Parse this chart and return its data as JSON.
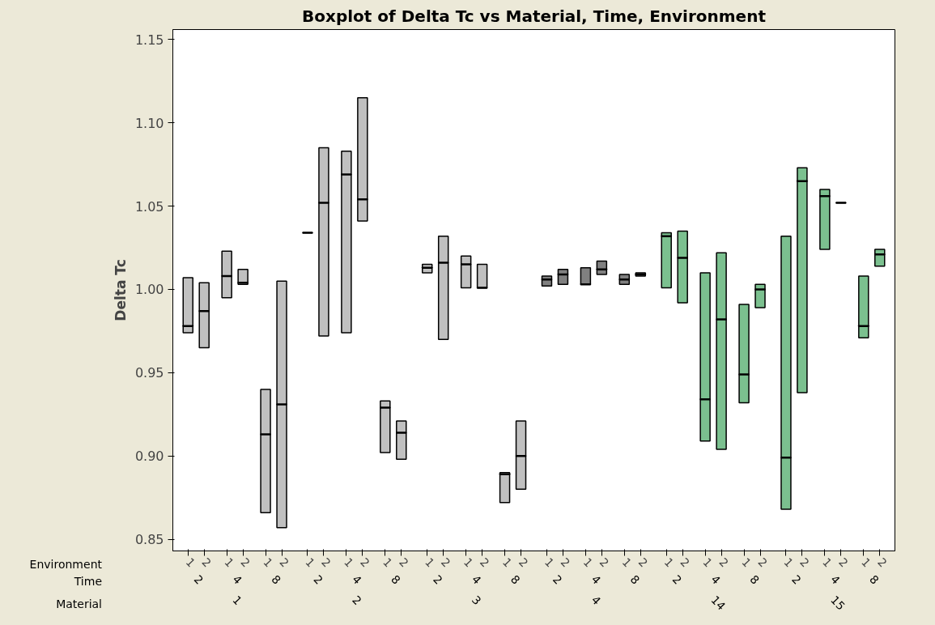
{
  "chart_data": {
    "type": "box",
    "title": "Boxplot of Delta Tc vs Material, Time, Environment",
    "ylabel": "Delta Tc",
    "annotations": [
      "Environment",
      "Time",
      "Material",
      "2",
      "4",
      "8",
      "2",
      "4",
      "8",
      "2",
      "4",
      "8",
      "2",
      "4",
      "8",
      "2",
      "4",
      "8",
      "2",
      "4",
      "8",
      "1",
      "2",
      "3",
      "4",
      "14",
      "15"
    ],
    "categories": [
      "1",
      "2",
      "1",
      "2",
      "1",
      "2",
      "1",
      "2",
      "1",
      "2",
      "1",
      "2",
      "1",
      "2",
      "1",
      "2",
      "1",
      "2",
      "1",
      "2",
      "1",
      "2",
      "1",
      "2",
      "1",
      "2",
      "1",
      "2",
      "1",
      "2",
      "1",
      "2",
      "1",
      "2",
      "1",
      "2"
    ],
    "ylim": [
      0.843,
      1.156
    ],
    "yticks": [
      {
        "value": 0.85,
        "label": "0.85"
      },
      {
        "value": 0.9,
        "label": "0.90"
      },
      {
        "value": 0.95,
        "label": "0.95"
      },
      {
        "value": 1.0,
        "label": "1.00"
      },
      {
        "value": 1.05,
        "label": "1.05"
      },
      {
        "value": 1.1,
        "label": "1.10"
      },
      {
        "value": 1.15,
        "label": "1.15"
      }
    ],
    "grid": false,
    "colors": [
      "#c0c0c0",
      "#c0c0c0",
      "#c0c0c0",
      "#c0c0c0",
      "#c0c0c0",
      "#c0c0c0",
      "#000000",
      "#c0c0c0",
      "#c0c0c0",
      "#c0c0c0",
      "#c0c0c0",
      "#c0c0c0",
      "#c0c0c0",
      "#c0c0c0",
      "#c0c0c0",
      "#c0c0c0",
      "#c0c0c0",
      "#c0c0c0",
      "#808080",
      "#808080",
      "#808080",
      "#808080",
      "#808080",
      "#808080",
      "#7bc08f",
      "#7bc08f",
      "#7bc08f",
      "#7bc08f",
      "#7bc08f",
      "#7bc08f",
      "#7bc08f",
      "#7bc08f",
      "#7bc08f",
      "#000000",
      "#7bc08f",
      "#7bc08f"
    ],
    "boxes": [
      {
        "low": 0.974,
        "q1": 0.974,
        "median": 0.978,
        "q3": 1.007,
        "high": 1.007
      },
      {
        "low": 0.965,
        "q1": 0.965,
        "median": 0.987,
        "q3": 1.004,
        "high": 1.004
      },
      {
        "low": 0.995,
        "q1": 0.995,
        "median": 1.008,
        "q3": 1.023,
        "high": 1.023
      },
      {
        "low": 1.003,
        "q1": 1.003,
        "median": 1.004,
        "q3": 1.012,
        "high": 1.012
      },
      {
        "low": 0.866,
        "q1": 0.866,
        "median": 0.913,
        "q3": 0.94,
        "high": 0.94
      },
      {
        "low": 0.857,
        "q1": 0.857,
        "median": 0.931,
        "q3": 1.005,
        "high": 1.005
      },
      {
        "low": 1.034,
        "q1": 1.034,
        "median": 1.034,
        "q3": 1.034,
        "high": 1.034
      },
      {
        "low": 0.972,
        "q1": 0.972,
        "median": 1.052,
        "q3": 1.085,
        "high": 1.085
      },
      {
        "low": 0.974,
        "q1": 0.974,
        "median": 1.069,
        "q3": 1.083,
        "high": 1.083
      },
      {
        "low": 1.041,
        "q1": 1.041,
        "median": 1.054,
        "q3": 1.115,
        "high": 1.115
      },
      {
        "low": 0.902,
        "q1": 0.902,
        "median": 0.929,
        "q3": 0.933,
        "high": 0.933
      },
      {
        "low": 0.898,
        "q1": 0.898,
        "median": 0.914,
        "q3": 0.921,
        "high": 0.921
      },
      {
        "low": 1.01,
        "q1": 1.01,
        "median": 1.013,
        "q3": 1.015,
        "high": 1.015
      },
      {
        "low": 0.97,
        "q1": 0.97,
        "median": 1.016,
        "q3": 1.032,
        "high": 1.032
      },
      {
        "low": 1.001,
        "q1": 1.001,
        "median": 1.015,
        "q3": 1.02,
        "high": 1.02
      },
      {
        "low": 1.001,
        "q1": 1.001,
        "median": 1.001,
        "q3": 1.015,
        "high": 1.015
      },
      {
        "low": 0.872,
        "q1": 0.872,
        "median": 0.889,
        "q3": 0.89,
        "high": 0.89
      },
      {
        "low": 0.88,
        "q1": 0.88,
        "median": 0.9,
        "q3": 0.921,
        "high": 0.921
      },
      {
        "low": 1.002,
        "q1": 1.002,
        "median": 1.006,
        "q3": 1.008,
        "high": 1.008
      },
      {
        "low": 1.003,
        "q1": 1.003,
        "median": 1.009,
        "q3": 1.012,
        "high": 1.012
      },
      {
        "low": 1.003,
        "q1": 1.003,
        "median": 1.003,
        "q3": 1.013,
        "high": 1.013
      },
      {
        "low": 1.009,
        "q1": 1.009,
        "median": 1.012,
        "q3": 1.017,
        "high": 1.017
      },
      {
        "low": 1.003,
        "q1": 1.003,
        "median": 1.006,
        "q3": 1.009,
        "high": 1.009
      },
      {
        "low": 1.008,
        "q1": 1.008,
        "median": 1.009,
        "q3": 1.01,
        "high": 1.01
      },
      {
        "low": 1.001,
        "q1": 1.001,
        "median": 1.032,
        "q3": 1.034,
        "high": 1.034
      },
      {
        "low": 0.992,
        "q1": 0.992,
        "median": 1.019,
        "q3": 1.035,
        "high": 1.035
      },
      {
        "low": 0.909,
        "q1": 0.909,
        "median": 0.934,
        "q3": 1.01,
        "high": 1.01
      },
      {
        "low": 0.904,
        "q1": 0.904,
        "median": 0.982,
        "q3": 1.022,
        "high": 1.022
      },
      {
        "low": 0.932,
        "q1": 0.932,
        "median": 0.949,
        "q3": 0.991,
        "high": 0.991
      },
      {
        "low": 0.989,
        "q1": 0.989,
        "median": 1.0,
        "q3": 1.003,
        "high": 1.003
      },
      {
        "low": 0.868,
        "q1": 0.868,
        "median": 0.899,
        "q3": 1.032,
        "high": 1.032
      },
      {
        "low": 0.938,
        "q1": 0.938,
        "median": 1.065,
        "q3": 1.073,
        "high": 1.073
      },
      {
        "low": 1.024,
        "q1": 1.024,
        "median": 1.056,
        "q3": 1.06,
        "high": 1.06
      },
      {
        "low": 1.052,
        "q1": 1.052,
        "median": 1.052,
        "q3": 1.052,
        "high": 1.052
      },
      {
        "low": 0.971,
        "q1": 0.971,
        "median": 0.978,
        "q3": 1.008,
        "high": 1.008
      },
      {
        "low": 1.014,
        "q1": 1.014,
        "median": 1.021,
        "q3": 1.024,
        "high": 1.024
      }
    ]
  }
}
